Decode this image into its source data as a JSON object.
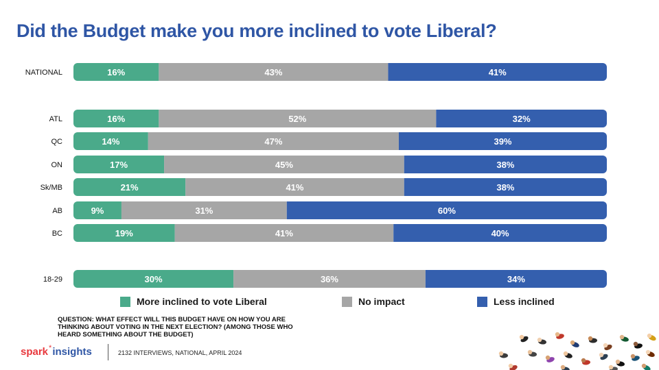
{
  "title": "Did the Budget make you more inclined to vote Liberal?",
  "colors": {
    "title": "#2f56a5",
    "more_inclined": "#4aaa8a",
    "no_impact": "#a6a6a6",
    "less_inclined": "#345fae"
  },
  "chart_data": {
    "type": "bar",
    "orientation": "horizontal",
    "stacked": true,
    "percent": true,
    "categories": [
      "NATIONAL",
      "ATL",
      "QC",
      "ON",
      "Sk/MB",
      "AB",
      "BC",
      "18-29"
    ],
    "series": [
      {
        "name": "More inclined to vote Liberal",
        "values": [
          16,
          16,
          14,
          17,
          21,
          9,
          19,
          30
        ],
        "labels": [
          "16%",
          "16%",
          "14%",
          "17%",
          "21%",
          "9%",
          "19%",
          "30%"
        ]
      },
      {
        "name": "No impact",
        "values": [
          43,
          52,
          47,
          45,
          41,
          31,
          41,
          36
        ],
        "labels": [
          "43%",
          "52%",
          "47%",
          "45%",
          "41%",
          "31%",
          "41%",
          "36%"
        ]
      },
      {
        "name": "Less inclined",
        "values": [
          41,
          32,
          39,
          38,
          38,
          60,
          40,
          34
        ],
        "labels": [
          "41%",
          "32%",
          "39%",
          "38%",
          "38%",
          "60%",
          "40%",
          "34%"
        ]
      }
    ],
    "legend_position": "bottom"
  },
  "legend": {
    "more": "More inclined to vote Liberal",
    "none": "No impact",
    "less": "Less inclined"
  },
  "question": "QUESTION: WHAT EFFECT WILL THIS BUDGET HAVE ON HOW YOU ARE THINKING ABOUT VOTING IN THE NEXT ELECTION? (AMONG THOSE WHO HEARD SOMETHING ABOUT THE BUDGET)",
  "footer": {
    "brand_spark": "spark",
    "brand_insights": "insights",
    "note": "2132 INTERVIEWS, NATIONAL, APRIL 2024"
  }
}
